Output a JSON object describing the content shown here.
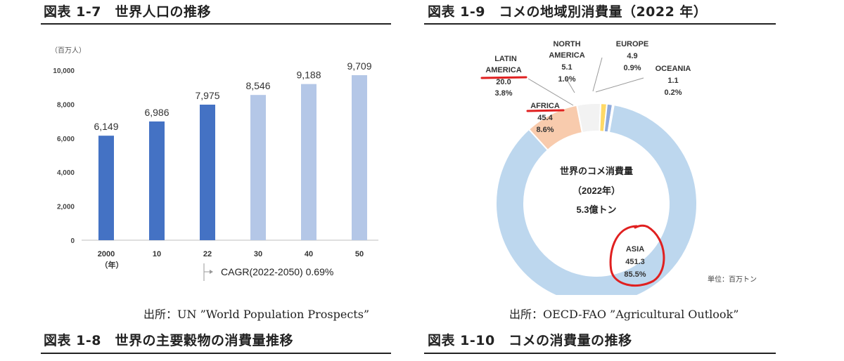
{
  "left_figure": {
    "title": "図表 1-7　世界人口の推移",
    "source": "出所：UN ”World Population Prospects”",
    "unit_label": "（百万人）",
    "x_unit_label": "（年）",
    "cagr_label": "CAGR(2022-2050) 0.69%"
  },
  "right_figure": {
    "title": "図表 1-9　コメの地域別消費量（2022 年）",
    "source": "出所：OECD-FAO ”Agricultural Outlook”",
    "unit_label": "単位：百万トン",
    "center_line1": "世界のコメ消費量",
    "center_line2": "（2022年）",
    "center_line3": "5.3億トン"
  },
  "bottom_left_title": "図表 1-8　世界の主要穀物の消費量推移",
  "bottom_right_title": "図表 1-10　コメの消費量の推移",
  "colors": {
    "bar_actual": "#4472c4",
    "bar_projected": "#b4c7e7",
    "asia": "#bdd7ee",
    "africa": "#f8cbad",
    "north_america": "#ffd966",
    "europe": "#8faadc",
    "oceania": "#a6a6a6",
    "latin_america": "#f2f2f2",
    "annotation": "#e02020"
  },
  "chart_data": [
    {
      "type": "bar",
      "categories": [
        "2000",
        "10",
        "22",
        "30",
        "40",
        "50"
      ],
      "values": [
        6149,
        6986,
        7975,
        8546,
        9188,
        9709
      ],
      "data_labels": [
        "6,149",
        "6,986",
        "7,975",
        "8,546",
        "9,188",
        "9,709"
      ],
      "projected_from_index": 3,
      "yticks": [
        "0",
        "2,000",
        "4,000",
        "6,000",
        "8,000",
        "10,000"
      ],
      "ylim": [
        0,
        10000
      ],
      "grid": false
    },
    {
      "type": "pie",
      "style": "donut",
      "slices": [
        {
          "key": "asia",
          "labels": [
            "ASIA",
            "451.3",
            "85.5%"
          ],
          "value": 451.3,
          "percent": 85.5
        },
        {
          "key": "africa",
          "labels": [
            "AFRICA",
            "45.4",
            "8.6%"
          ],
          "value": 45.4,
          "percent": 8.6
        },
        {
          "key": "latin_america",
          "labels": [
            "LATIN",
            "AMERICA",
            "20.0",
            "3.8%"
          ],
          "value": 20.0,
          "percent": 3.8
        },
        {
          "key": "north_america",
          "labels": [
            "NORTH",
            "AMERICA",
            "5.1",
            "1.0%"
          ],
          "value": 5.1,
          "percent": 1.0
        },
        {
          "key": "europe",
          "labels": [
            "EUROPE",
            "4.9",
            "0.9%"
          ],
          "value": 4.9,
          "percent": 0.9
        },
        {
          "key": "oceania",
          "labels": [
            "OCEANIA",
            "1.1",
            "0.2%"
          ],
          "value": 1.1,
          "percent": 0.2
        }
      ]
    }
  ]
}
